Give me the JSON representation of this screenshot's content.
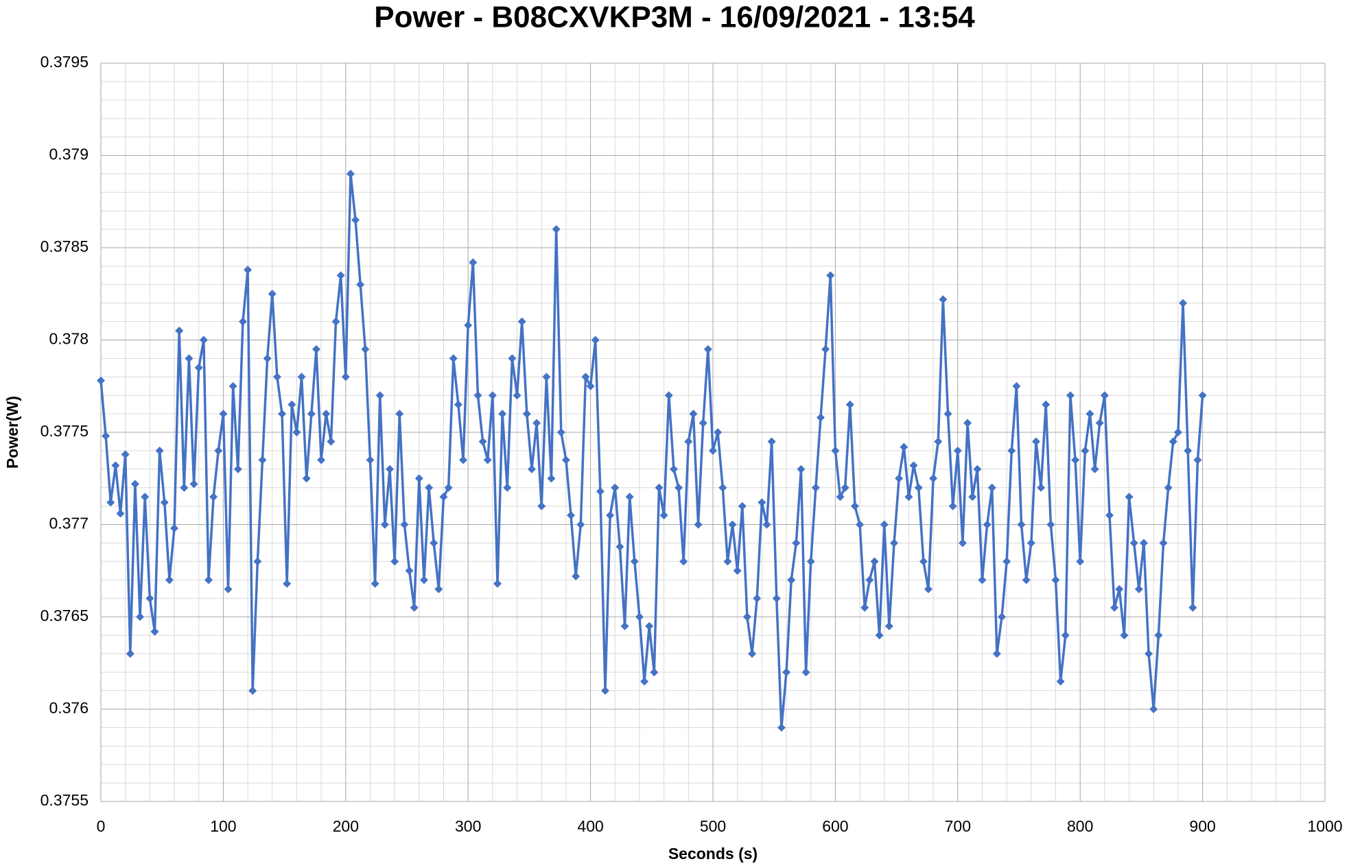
{
  "chart_data": {
    "type": "line",
    "title": "Power - B08CXVKP3M - 16/09/2021 - 13:54",
    "x_label": "Seconds (s)",
    "y_label": "Power(W)",
    "xlim": [
      0,
      1000
    ],
    "xticks": [
      0,
      100,
      200,
      300,
      400,
      500,
      600,
      700,
      800,
      900,
      1000
    ],
    "ylim": [
      0.3755,
      0.3795
    ],
    "yticks": [
      0.3755,
      0.376,
      0.3765,
      0.377,
      0.3775,
      0.378,
      0.3785,
      0.379,
      0.3795
    ],
    "grid": true,
    "minor_grid": true,
    "marker": "diamond",
    "x": [
      0,
      4,
      8,
      12,
      16,
      20,
      24,
      28,
      32,
      36,
      40,
      44,
      48,
      52,
      56,
      60,
      64,
      68,
      72,
      76,
      80,
      84,
      88,
      92,
      96,
      100,
      104,
      108,
      112,
      116,
      120,
      124,
      128,
      132,
      136,
      140,
      144,
      148,
      152,
      156,
      160,
      164,
      168,
      172,
      176,
      180,
      184,
      188,
      192,
      196,
      200,
      204,
      208,
      212,
      216,
      220,
      224,
      228,
      232,
      236,
      240,
      244,
      248,
      252,
      256,
      260,
      264,
      268,
      272,
      276,
      280,
      284,
      288,
      292,
      296,
      300,
      304,
      308,
      312,
      316,
      320,
      324,
      328,
      332,
      336,
      340,
      344,
      348,
      352,
      356,
      360,
      364,
      368,
      372,
      376,
      380,
      384,
      388,
      392,
      396,
      400,
      404,
      408,
      412,
      416,
      420,
      424,
      428,
      432,
      436,
      440,
      444,
      448,
      452,
      456,
      460,
      464,
      468,
      472,
      476,
      480,
      484,
      488,
      492,
      496,
      500,
      504,
      508,
      512,
      516,
      520,
      524,
      528,
      532,
      536,
      540,
      544,
      548,
      552,
      556,
      560,
      564,
      568,
      572,
      576,
      580,
      584,
      588,
      592,
      596,
      600,
      604,
      608,
      612,
      616,
      620,
      624,
      628,
      632,
      636,
      640,
      644,
      648,
      652,
      656,
      660,
      664,
      668,
      672,
      676,
      680,
      684,
      688,
      692,
      696,
      700,
      704,
      708,
      712,
      716,
      720,
      724,
      728,
      732,
      736,
      740,
      744,
      748,
      752,
      756,
      760,
      764,
      768,
      772,
      776,
      780,
      784,
      788,
      792,
      796,
      800,
      804,
      808,
      812,
      816,
      820,
      824,
      828,
      832,
      836,
      840,
      844,
      848,
      852,
      856,
      860,
      864,
      868,
      872,
      876,
      880,
      884,
      888,
      892,
      896,
      900
    ],
    "series": [
      {
        "name": "Power(W)",
        "color": "#4472c4",
        "values": [
          0.37778,
          0.37748,
          0.37712,
          0.37732,
          0.37706,
          0.37738,
          0.3763,
          0.37722,
          0.3765,
          0.37715,
          0.3766,
          0.37642,
          0.3774,
          0.37712,
          0.3767,
          0.37698,
          0.37805,
          0.3772,
          0.3779,
          0.37722,
          0.37785,
          0.378,
          0.3767,
          0.37715,
          0.3774,
          0.3776,
          0.37665,
          0.37775,
          0.3773,
          0.3781,
          0.37838,
          0.3761,
          0.3768,
          0.37735,
          0.3779,
          0.37825,
          0.3778,
          0.3776,
          0.37668,
          0.37765,
          0.3775,
          0.3778,
          0.37725,
          0.3776,
          0.37795,
          0.37735,
          0.3776,
          0.37745,
          0.3781,
          0.37835,
          0.3778,
          0.3789,
          0.37865,
          0.3783,
          0.37795,
          0.37735,
          0.37668,
          0.3777,
          0.377,
          0.3773,
          0.3768,
          0.3776,
          0.377,
          0.37675,
          0.37655,
          0.37725,
          0.3767,
          0.3772,
          0.3769,
          0.37665,
          0.37715,
          0.3772,
          0.3779,
          0.37765,
          0.37735,
          0.37808,
          0.37842,
          0.3777,
          0.37745,
          0.37735,
          0.3777,
          0.37668,
          0.3776,
          0.3772,
          0.3779,
          0.3777,
          0.3781,
          0.3776,
          0.3773,
          0.37755,
          0.3771,
          0.3778,
          0.37725,
          0.3786,
          0.3775,
          0.37735,
          0.37705,
          0.37672,
          0.377,
          0.3778,
          0.37775,
          0.378,
          0.37718,
          0.3761,
          0.37705,
          0.3772,
          0.37688,
          0.37645,
          0.37715,
          0.3768,
          0.3765,
          0.37615,
          0.37645,
          0.3762,
          0.3772,
          0.37705,
          0.3777,
          0.3773,
          0.3772,
          0.3768,
          0.37745,
          0.3776,
          0.377,
          0.37755,
          0.37795,
          0.3774,
          0.3775,
          0.3772,
          0.3768,
          0.377,
          0.37675,
          0.3771,
          0.3765,
          0.3763,
          0.3766,
          0.37712,
          0.377,
          0.37745,
          0.3766,
          0.3759,
          0.3762,
          0.3767,
          0.3769,
          0.3773,
          0.3762,
          0.3768,
          0.3772,
          0.37758,
          0.37795,
          0.37835,
          0.3774,
          0.37715,
          0.3772,
          0.37765,
          0.3771,
          0.377,
          0.37655,
          0.3767,
          0.3768,
          0.3764,
          0.377,
          0.37645,
          0.3769,
          0.37725,
          0.37742,
          0.37715,
          0.37732,
          0.3772,
          0.3768,
          0.37665,
          0.37725,
          0.37745,
          0.37822,
          0.3776,
          0.3771,
          0.3774,
          0.3769,
          0.37755,
          0.37715,
          0.3773,
          0.3767,
          0.377,
          0.3772,
          0.3763,
          0.3765,
          0.3768,
          0.3774,
          0.37775,
          0.377,
          0.3767,
          0.3769,
          0.37745,
          0.3772,
          0.37765,
          0.377,
          0.3767,
          0.37615,
          0.3764,
          0.3777,
          0.37735,
          0.3768,
          0.3774,
          0.3776,
          0.3773,
          0.37755,
          0.3777,
          0.37705,
          0.37655,
          0.37665,
          0.3764,
          0.37715,
          0.3769,
          0.37665,
          0.3769,
          0.3763,
          0.376,
          0.3764,
          0.3769,
          0.3772,
          0.37745,
          0.3775,
          0.3782,
          0.3774,
          0.37655,
          0.37735,
          0.3777
        ]
      }
    ]
  }
}
